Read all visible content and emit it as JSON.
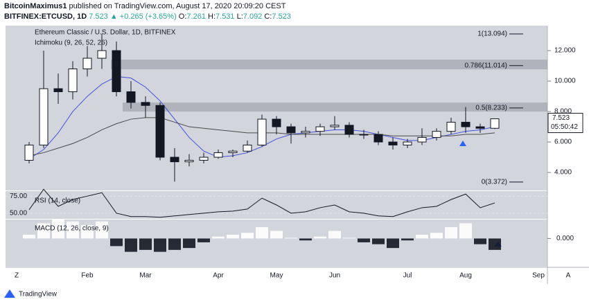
{
  "header": {
    "author": "BitcoinMaximus1",
    "published": "published on TradingView.com, August 17, 2020 20:09:20 CEST",
    "symbol": "BITFINEX:ETCUSD, 1D",
    "price": "7.523",
    "change": "▲ +0.265 (+3.65%)",
    "ohlc": [
      [
        "O:",
        "7.261"
      ],
      [
        "H:",
        "7.531"
      ],
      [
        "L:",
        "7.092"
      ],
      [
        "C:",
        "7.523"
      ]
    ]
  },
  "toolbar": {
    "left": "Z",
    "right": "A"
  },
  "footer": {
    "brand": "TradingView"
  },
  "chart_data": [
    {
      "type": "candlestick",
      "title": "Ethereum Classic / U.S. Dollar, 1D, BITFINEX",
      "indicator": "Ichimoku (9, 26, 52, 26)",
      "categories": [
        null,
        null,
        null,
        null,
        "Feb",
        null,
        null,
        null,
        "Mar",
        null,
        null,
        null,
        null,
        "Apr",
        null,
        null,
        null,
        "May",
        null,
        null,
        null,
        "Jun",
        null,
        null,
        null,
        null,
        "Jul",
        null,
        null,
        null,
        "Aug",
        null,
        null,
        null,
        null,
        "Sep"
      ],
      "open": [
        4.8,
        5.8,
        9.5,
        9.3,
        10.8,
        11.5,
        12.0,
        9.3,
        8.6,
        8.4,
        5.0,
        4.7,
        4.8,
        5.0,
        5.3,
        5.4,
        5.8,
        7.5,
        7.0,
        6.6,
        6.7,
        7.0,
        7.1,
        6.5,
        6.5,
        6.0,
        5.8,
        6.0,
        6.3,
        6.7,
        7.3,
        7.0,
        6.9,
        null,
        null,
        null
      ],
      "high": [
        6.0,
        12.0,
        10.5,
        11.3,
        12.3,
        13.1,
        12.6,
        10.0,
        9.0,
        8.6,
        5.6,
        5.2,
        5.3,
        5.5,
        5.5,
        6.1,
        7.8,
        7.7,
        7.2,
        7.0,
        7.2,
        7.7,
        7.3,
        6.8,
        6.7,
        6.3,
        6.2,
        6.9,
        6.9,
        7.6,
        8.3,
        7.2,
        7.53,
        null,
        null,
        null
      ],
      "low": [
        4.6,
        5.6,
        8.5,
        8.8,
        10.3,
        10.8,
        9.0,
        8.2,
        7.6,
        4.8,
        3.4,
        4.4,
        4.6,
        4.9,
        5.0,
        5.3,
        5.7,
        6.5,
        5.9,
        6.3,
        6.4,
        6.8,
        6.3,
        6.2,
        5.8,
        5.5,
        5.6,
        5.8,
        6.1,
        6.5,
        6.6,
        6.6,
        6.85,
        null,
        null,
        null
      ],
      "close": [
        5.8,
        9.5,
        9.3,
        10.8,
        11.5,
        12.0,
        9.3,
        8.6,
        8.4,
        5.0,
        4.7,
        4.8,
        5.0,
        5.3,
        5.4,
        5.8,
        7.5,
        7.0,
        6.6,
        6.7,
        7.0,
        7.1,
        6.5,
        6.5,
        6.0,
        5.8,
        6.0,
        6.3,
        6.7,
        7.3,
        7.0,
        6.9,
        7.523,
        null,
        null,
        null
      ],
      "colors": {
        "up": "#ffffff",
        "down": "#131722"
      },
      "series": [
        {
          "color": "#3f4fe0",
          "values": [
            4.9,
            5.5,
            6.6,
            8.0,
            9.0,
            9.8,
            10.3,
            10.2,
            9.6,
            8.7,
            7.5,
            6.3,
            5.4,
            5.0,
            5.1,
            5.3,
            5.7,
            6.2,
            6.5,
            6.6,
            6.7,
            6.8,
            6.8,
            6.7,
            6.5,
            6.3,
            6.1,
            6.1,
            6.3,
            6.5,
            6.7,
            6.8,
            7.0,
            null,
            null,
            null
          ]
        },
        {
          "color": "#4a4a4a",
          "values": [
            5.1,
            5.3,
            5.6,
            5.9,
            6.3,
            6.8,
            7.2,
            7.5,
            7.6,
            7.6,
            7.3,
            7.0,
            6.9,
            6.8,
            6.7,
            6.6,
            6.6,
            6.6,
            6.5,
            6.5,
            6.5,
            6.5,
            6.5,
            6.5,
            6.5,
            6.4,
            6.4,
            6.4,
            6.4,
            6.4,
            6.5,
            6.5,
            6.6,
            null,
            null,
            null
          ]
        }
      ],
      "ylim": [
        2.82,
        13.64
      ],
      "yticks": [
        {
          "value": 4,
          "label": "4.000"
        },
        {
          "value": 6,
          "label": "6.000"
        },
        {
          "value": 8,
          "label": "8.000"
        },
        {
          "value": 10,
          "label": "10.000"
        },
        {
          "value": 12,
          "label": "12.000"
        }
      ],
      "fib_levels": [
        {
          "value": 13.094,
          "label": "1(13.094)"
        },
        {
          "value": 11.014,
          "label": "0.786(11.014)"
        },
        {
          "value": 8.233,
          "label": "0.5(8.233)"
        },
        {
          "value": 3.372,
          "label": "0(3.372)"
        }
      ],
      "zones": [
        {
          "from": 10.77,
          "to": 11.41
        },
        {
          "from": 8.0,
          "to": 8.59
        }
      ],
      "last_price": "7.523",
      "countdown": "05:50:42"
    },
    {
      "type": "line",
      "title": "RSI (14, close)",
      "color": "#131722",
      "values": [
        55,
        85,
        60,
        70,
        75,
        80,
        50,
        45,
        45,
        44,
        46,
        48,
        50,
        52,
        53,
        56,
        72,
        62,
        50,
        52,
        58,
        62,
        52,
        50,
        46,
        45,
        52,
        58,
        60,
        70,
        78,
        58,
        65,
        null,
        null,
        null
      ],
      "ylim": [
        41.7,
        82.3
      ],
      "yticks": [
        {
          "value": 50,
          "label": "50.00"
        },
        {
          "value": 75,
          "label": "75.00"
        }
      ]
    },
    {
      "type": "bar",
      "title": "MACD (12, 26, close, 9)",
      "colors": {
        "up": "#ffffff",
        "down": "#131722"
      },
      "values": [
        0.1,
        0.4,
        0.5,
        0.45,
        0.35,
        0.45,
        -0.2,
        -0.35,
        -0.3,
        -0.35,
        -0.3,
        -0.25,
        -0.1,
        0.05,
        0.1,
        0.15,
        0.3,
        0.2,
        0.02,
        -0.05,
        0.05,
        0.2,
        0.02,
        -0.1,
        -0.15,
        -0.25,
        -0.05,
        0.1,
        0.15,
        0.3,
        0.4,
        -0.15,
        -0.3,
        null,
        null,
        null
      ],
      "ylim": [
        -0.74,
        0.5
      ],
      "yticks": [
        {
          "value": 0,
          "label": "0.000"
        }
      ]
    }
  ]
}
